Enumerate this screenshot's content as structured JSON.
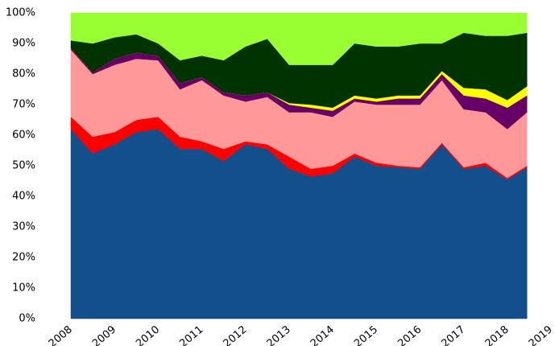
{
  "chart_data": {
    "type": "stacked_area",
    "x": [
      2008.0,
      2008.5,
      2009.0,
      2009.5,
      2010.0,
      2010.5,
      2011.0,
      2011.5,
      2012.0,
      2012.5,
      2013.0,
      2013.5,
      2014.0,
      2014.5,
      2015.0,
      2015.5,
      2016.0,
      2016.5,
      2017.0,
      2017.5,
      2018.0,
      2018.45
    ],
    "series": [
      {
        "color": "#134f8b",
        "values": [
          62,
          54,
          57,
          61,
          62,
          55.5,
          55.5,
          51.5,
          57,
          55.5,
          49,
          46.5,
          47.5,
          53,
          50,
          49.5,
          49,
          57,
          49,
          50,
          45.5,
          49.5
        ]
      },
      {
        "color": "#ff0000",
        "values": [
          4,
          5.5,
          4,
          4,
          4,
          4,
          2.5,
          4,
          1,
          1.5,
          4,
          2.5,
          2.5,
          1,
          1,
          0.5,
          0.5,
          0.5,
          0.5,
          1,
          0.5,
          0.5
        ]
      },
      {
        "color": "#ff9999",
        "values": [
          22,
          20.5,
          22,
          20,
          18.5,
          15.5,
          20,
          17.5,
          13,
          15.5,
          14.5,
          18.5,
          16,
          17,
          19,
          20,
          20.5,
          20.5,
          19,
          16.5,
          16,
          17.5
        ]
      },
      {
        "color": "#660066",
        "values": [
          0.5,
          0.5,
          2,
          2,
          1.5,
          2,
          1,
          1,
          2,
          1.5,
          2.5,
          1.5,
          2,
          1,
          1,
          2,
          2,
          2,
          4.5,
          4.5,
          7,
          5.5
        ]
      },
      {
        "color": "#ffff00",
        "values": [
          0,
          0,
          0,
          0,
          0,
          0,
          0,
          0,
          0,
          0,
          0.5,
          1,
          1,
          1,
          1,
          1,
          1,
          1,
          2.5,
          3,
          2.5,
          3
        ]
      },
      {
        "color": "#003300",
        "values": [
          2.5,
          9.5,
          7,
          6,
          4,
          7.5,
          7,
          10.5,
          16,
          17.5,
          12.5,
          13,
          14,
          17,
          17,
          16,
          17,
          9,
          18,
          17.5,
          21,
          17.5
        ]
      },
      {
        "color": "#99ff33",
        "values": [
          9,
          10,
          8,
          7,
          10,
          15.5,
          14,
          15.5,
          11,
          8.5,
          17,
          17,
          17,
          10,
          11,
          11,
          10,
          10,
          6.5,
          7.5,
          7.5,
          6.5
        ]
      }
    ],
    "xlim": [
      2008,
      2019
    ],
    "xticks": [
      2008,
      2009,
      2010,
      2011,
      2012,
      2013,
      2014,
      2015,
      2016,
      2017,
      2018,
      2019
    ],
    "ylim": [
      0,
      100
    ],
    "yticks": [
      {
        "value": 0,
        "label": "0%"
      },
      {
        "value": 10,
        "label": "10%"
      },
      {
        "value": 20,
        "label": "20%"
      },
      {
        "value": 30,
        "label": "30%"
      },
      {
        "value": 40,
        "label": "40%"
      },
      {
        "value": 50,
        "label": "50%"
      },
      {
        "value": 60,
        "label": "60%"
      },
      {
        "value": 70,
        "label": "70%"
      },
      {
        "value": 80,
        "label": "80%"
      },
      {
        "value": 90,
        "label": "90%"
      },
      {
        "value": 100,
        "label": "100%"
      }
    ]
  }
}
